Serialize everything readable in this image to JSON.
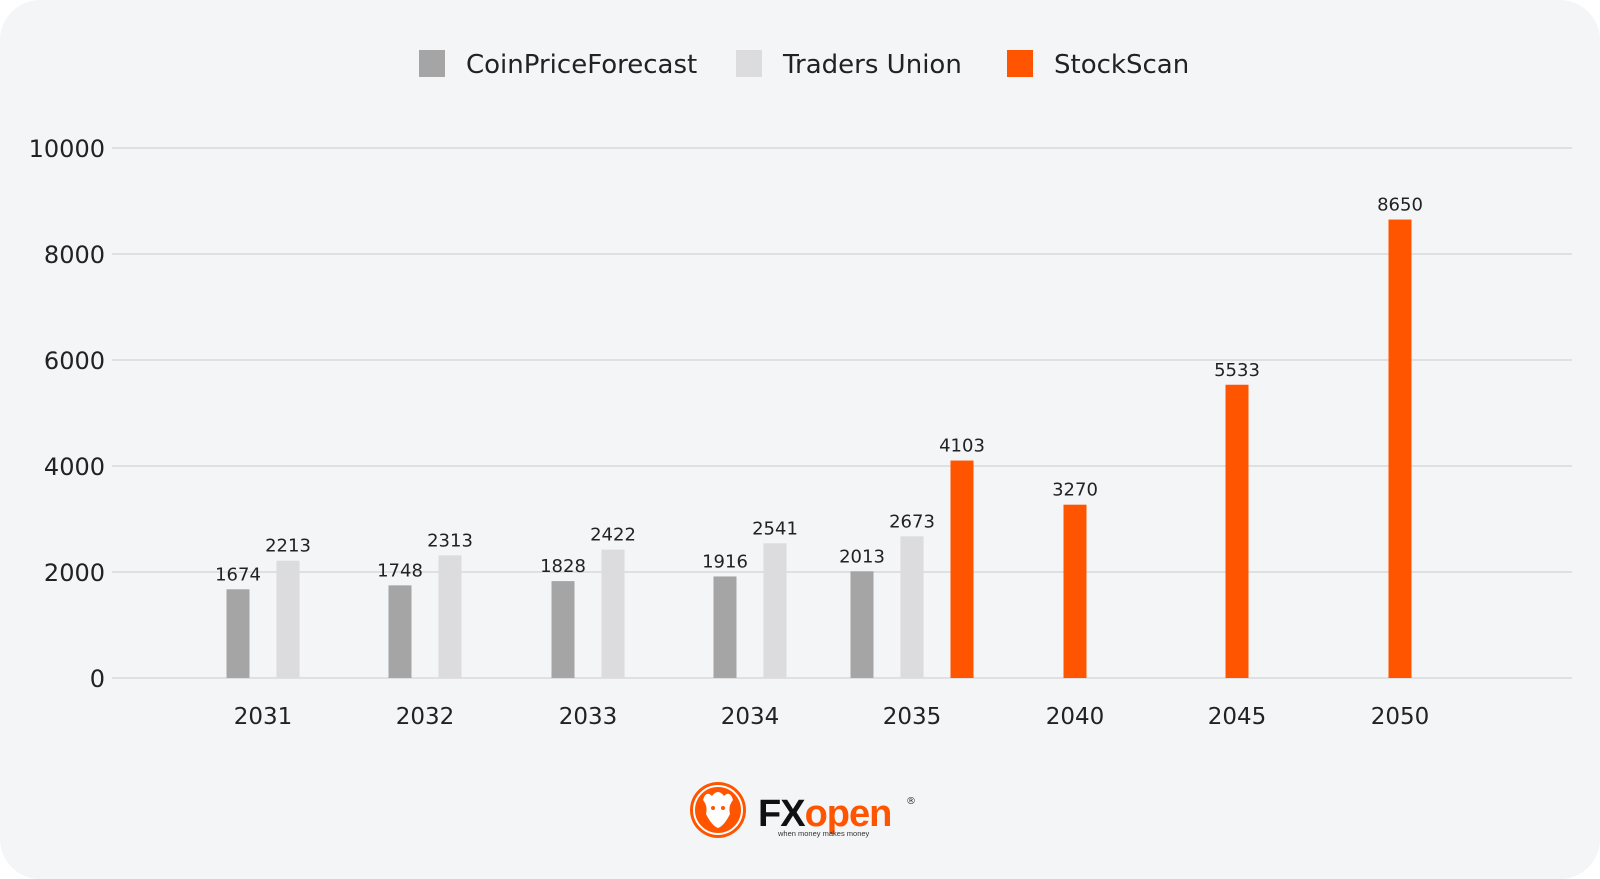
{
  "chart_data": {
    "type": "bar",
    "categories": [
      "2031",
      "2032",
      "2033",
      "2034",
      "2035",
      "2040",
      "2045",
      "2050"
    ],
    "series": [
      {
        "name": "CoinPriceForecast",
        "color": "#a5a5a5",
        "values": [
          1674,
          1748,
          1828,
          1916,
          2013,
          null,
          null,
          null
        ]
      },
      {
        "name": "Traders Union",
        "color": "#dcdcde",
        "values": [
          2213,
          2313,
          2422,
          2541,
          2673,
          null,
          null,
          null
        ]
      },
      {
        "name": "StockScan",
        "color": "#ff5500",
        "values": [
          null,
          null,
          null,
          null,
          4103,
          3270,
          5533,
          8650
        ]
      }
    ],
    "ylim": [
      0,
      10000
    ],
    "yticks": [
      0,
      2000,
      4000,
      6000,
      8000,
      10000
    ],
    "grid": true,
    "legend_position": "top-center",
    "title": "",
    "xlabel": "",
    "ylabel": ""
  },
  "branding": {
    "logo_fx": "FX",
    "logo_open": "open",
    "logo_registered": "®",
    "logo_tagline": "when money makes money",
    "icon": "bull-icon",
    "accent_color": "#ff5500"
  }
}
